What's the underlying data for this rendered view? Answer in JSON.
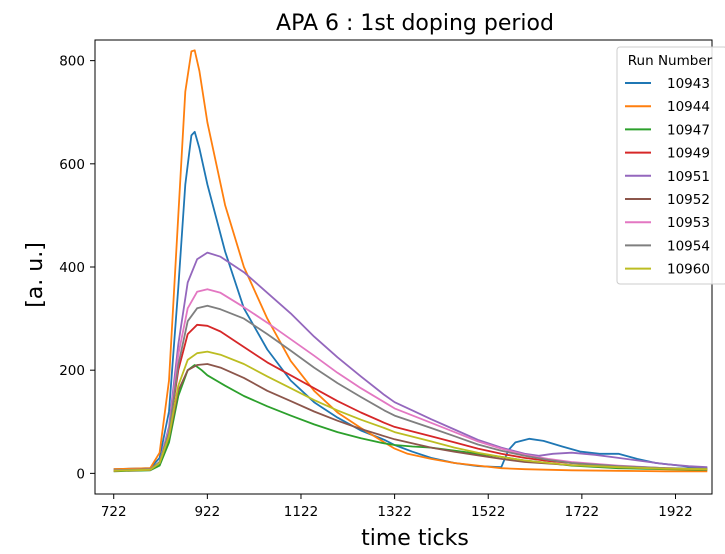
{
  "chart_data": {
    "type": "line",
    "title": "APA 6 :  1st doping period",
    "xlabel": "time ticks",
    "ylabel": "[a. u.]",
    "xlim": [
      682,
      2000
    ],
    "ylim": [
      -40,
      840
    ],
    "x_ticks": [
      722,
      922,
      1122,
      1322,
      1522,
      1722,
      1922
    ],
    "y_ticks": [
      0,
      200,
      400,
      600,
      800
    ],
    "legend": {
      "title": "Run Number",
      "placement": "top-right"
    },
    "grid": false,
    "series": [
      {
        "name": "10943",
        "color": "#1f77b4",
        "points": [
          [
            722,
            8
          ],
          [
            760,
            9
          ],
          [
            800,
            10
          ],
          [
            820,
            30
          ],
          [
            840,
            120
          ],
          [
            860,
            360
          ],
          [
            875,
            560
          ],
          [
            888,
            655
          ],
          [
            895,
            662
          ],
          [
            905,
            630
          ],
          [
            922,
            560
          ],
          [
            960,
            430
          ],
          [
            1000,
            320
          ],
          [
            1050,
            240
          ],
          [
            1100,
            180
          ],
          [
            1150,
            138
          ],
          [
            1200,
            108
          ],
          [
            1250,
            83
          ],
          [
            1300,
            65
          ],
          [
            1322,
            55
          ],
          [
            1360,
            42
          ],
          [
            1400,
            30
          ],
          [
            1450,
            20
          ],
          [
            1500,
            14
          ],
          [
            1550,
            12
          ],
          [
            1565,
            45
          ],
          [
            1580,
            60
          ],
          [
            1610,
            67
          ],
          [
            1640,
            63
          ],
          [
            1680,
            52
          ],
          [
            1720,
            42
          ],
          [
            1760,
            38
          ],
          [
            1800,
            38
          ],
          [
            1840,
            28
          ],
          [
            1880,
            20
          ],
          [
            1922,
            16
          ],
          [
            1960,
            12
          ],
          [
            1990,
            10
          ]
        ]
      },
      {
        "name": "10944",
        "color": "#ff7f0e",
        "points": [
          [
            722,
            8
          ],
          [
            760,
            9
          ],
          [
            800,
            10
          ],
          [
            820,
            40
          ],
          [
            840,
            180
          ],
          [
            860,
            500
          ],
          [
            875,
            740
          ],
          [
            888,
            818
          ],
          [
            895,
            820
          ],
          [
            905,
            780
          ],
          [
            922,
            680
          ],
          [
            960,
            520
          ],
          [
            1000,
            400
          ],
          [
            1050,
            300
          ],
          [
            1100,
            218
          ],
          [
            1150,
            160
          ],
          [
            1200,
            118
          ],
          [
            1250,
            88
          ],
          [
            1300,
            60
          ],
          [
            1322,
            48
          ],
          [
            1350,
            38
          ],
          [
            1400,
            28
          ],
          [
            1450,
            20
          ],
          [
            1500,
            15
          ],
          [
            1550,
            10
          ],
          [
            1600,
            8
          ],
          [
            1700,
            6
          ],
          [
            1800,
            5
          ],
          [
            1900,
            4
          ],
          [
            1990,
            4
          ]
        ]
      },
      {
        "name": "10947",
        "color": "#2ca02c",
        "points": [
          [
            722,
            4
          ],
          [
            760,
            5
          ],
          [
            800,
            6
          ],
          [
            820,
            15
          ],
          [
            840,
            60
          ],
          [
            860,
            150
          ],
          [
            880,
            200
          ],
          [
            895,
            210
          ],
          [
            910,
            200
          ],
          [
            922,
            190
          ],
          [
            960,
            170
          ],
          [
            1000,
            150
          ],
          [
            1050,
            130
          ],
          [
            1100,
            112
          ],
          [
            1150,
            95
          ],
          [
            1200,
            80
          ],
          [
            1250,
            68
          ],
          [
            1300,
            58
          ],
          [
            1322,
            55
          ],
          [
            1360,
            52
          ],
          [
            1400,
            50
          ],
          [
            1450,
            44
          ],
          [
            1500,
            38
          ],
          [
            1550,
            32
          ],
          [
            1600,
            25
          ],
          [
            1650,
            20
          ],
          [
            1700,
            15
          ],
          [
            1800,
            10
          ],
          [
            1900,
            8
          ],
          [
            1990,
            7
          ]
        ]
      },
      {
        "name": "10949",
        "color": "#d62728",
        "points": [
          [
            722,
            5
          ],
          [
            760,
            6
          ],
          [
            800,
            7
          ],
          [
            820,
            20
          ],
          [
            840,
            80
          ],
          [
            860,
            200
          ],
          [
            880,
            270
          ],
          [
            900,
            288
          ],
          [
            922,
            286
          ],
          [
            950,
            275
          ],
          [
            1000,
            245
          ],
          [
            1050,
            215
          ],
          [
            1100,
            190
          ],
          [
            1150,
            165
          ],
          [
            1200,
            140
          ],
          [
            1250,
            118
          ],
          [
            1300,
            98
          ],
          [
            1322,
            90
          ],
          [
            1400,
            72
          ],
          [
            1450,
            60
          ],
          [
            1500,
            48
          ],
          [
            1550,
            38
          ],
          [
            1600,
            30
          ],
          [
            1650,
            24
          ],
          [
            1700,
            20
          ],
          [
            1800,
            14
          ],
          [
            1900,
            10
          ],
          [
            1990,
            8
          ]
        ]
      },
      {
        "name": "10951",
        "color": "#9467bd",
        "points": [
          [
            722,
            5
          ],
          [
            760,
            6
          ],
          [
            800,
            7
          ],
          [
            820,
            20
          ],
          [
            840,
            90
          ],
          [
            860,
            250
          ],
          [
            880,
            370
          ],
          [
            900,
            415
          ],
          [
            922,
            428
          ],
          [
            950,
            420
          ],
          [
            1000,
            390
          ],
          [
            1050,
            350
          ],
          [
            1100,
            310
          ],
          [
            1150,
            265
          ],
          [
            1200,
            225
          ],
          [
            1250,
            188
          ],
          [
            1300,
            152
          ],
          [
            1322,
            138
          ],
          [
            1360,
            122
          ],
          [
            1400,
            105
          ],
          [
            1450,
            85
          ],
          [
            1500,
            65
          ],
          [
            1550,
            50
          ],
          [
            1600,
            38
          ],
          [
            1630,
            34
          ],
          [
            1660,
            38
          ],
          [
            1700,
            40
          ],
          [
            1750,
            36
          ],
          [
            1800,
            30
          ],
          [
            1850,
            24
          ],
          [
            1900,
            18
          ],
          [
            1950,
            14
          ],
          [
            1990,
            12
          ]
        ]
      },
      {
        "name": "10952",
        "color": "#8c564b",
        "points": [
          [
            722,
            5
          ],
          [
            760,
            6
          ],
          [
            800,
            7
          ],
          [
            820,
            20
          ],
          [
            840,
            70
          ],
          [
            860,
            160
          ],
          [
            880,
            200
          ],
          [
            900,
            210
          ],
          [
            922,
            212
          ],
          [
            950,
            205
          ],
          [
            1000,
            185
          ],
          [
            1050,
            160
          ],
          [
            1100,
            140
          ],
          [
            1150,
            120
          ],
          [
            1200,
            102
          ],
          [
            1250,
            86
          ],
          [
            1300,
            72
          ],
          [
            1322,
            66
          ],
          [
            1400,
            50
          ],
          [
            1450,
            42
          ],
          [
            1500,
            35
          ],
          [
            1550,
            28
          ],
          [
            1600,
            22
          ],
          [
            1700,
            16
          ],
          [
            1800,
            12
          ],
          [
            1900,
            9
          ],
          [
            1990,
            8
          ]
        ]
      },
      {
        "name": "10953",
        "color": "#e377c2",
        "points": [
          [
            722,
            6
          ],
          [
            760,
            7
          ],
          [
            800,
            8
          ],
          [
            820,
            22
          ],
          [
            840,
            85
          ],
          [
            860,
            230
          ],
          [
            880,
            320
          ],
          [
            900,
            352
          ],
          [
            922,
            357
          ],
          [
            950,
            350
          ],
          [
            1000,
            322
          ],
          [
            1050,
            292
          ],
          [
            1100,
            260
          ],
          [
            1150,
            228
          ],
          [
            1200,
            195
          ],
          [
            1250,
            165
          ],
          [
            1300,
            138
          ],
          [
            1322,
            126
          ],
          [
            1400,
            98
          ],
          [
            1450,
            80
          ],
          [
            1500,
            62
          ],
          [
            1550,
            48
          ],
          [
            1600,
            36
          ],
          [
            1650,
            28
          ],
          [
            1700,
            22
          ],
          [
            1800,
            15
          ],
          [
            1900,
            10
          ],
          [
            1990,
            8
          ]
        ]
      },
      {
        "name": "10954",
        "color": "#7f7f7f",
        "points": [
          [
            722,
            6
          ],
          [
            760,
            7
          ],
          [
            800,
            8
          ],
          [
            820,
            22
          ],
          [
            840,
            80
          ],
          [
            860,
            210
          ],
          [
            880,
            295
          ],
          [
            900,
            320
          ],
          [
            922,
            325
          ],
          [
            950,
            318
          ],
          [
            1000,
            300
          ],
          [
            1050,
            270
          ],
          [
            1100,
            238
          ],
          [
            1150,
            205
          ],
          [
            1200,
            175
          ],
          [
            1250,
            148
          ],
          [
            1300,
            122
          ],
          [
            1322,
            112
          ],
          [
            1400,
            88
          ],
          [
            1450,
            72
          ],
          [
            1500,
            56
          ],
          [
            1550,
            44
          ],
          [
            1600,
            34
          ],
          [
            1650,
            26
          ],
          [
            1700,
            20
          ],
          [
            1800,
            14
          ],
          [
            1900,
            10
          ],
          [
            1990,
            9
          ]
        ]
      },
      {
        "name": "10960",
        "color": "#bcbd22",
        "points": [
          [
            722,
            5
          ],
          [
            760,
            6
          ],
          [
            800,
            7
          ],
          [
            820,
            20
          ],
          [
            840,
            72
          ],
          [
            860,
            170
          ],
          [
            880,
            220
          ],
          [
            900,
            233
          ],
          [
            922,
            236
          ],
          [
            950,
            230
          ],
          [
            1000,
            212
          ],
          [
            1050,
            188
          ],
          [
            1100,
            165
          ],
          [
            1150,
            142
          ],
          [
            1200,
            122
          ],
          [
            1250,
            104
          ],
          [
            1300,
            88
          ],
          [
            1322,
            80
          ],
          [
            1400,
            62
          ],
          [
            1450,
            50
          ],
          [
            1500,
            40
          ],
          [
            1550,
            32
          ],
          [
            1600,
            25
          ],
          [
            1650,
            20
          ],
          [
            1700,
            16
          ],
          [
            1800,
            12
          ],
          [
            1900,
            9
          ],
          [
            1990,
            8
          ]
        ]
      }
    ]
  }
}
